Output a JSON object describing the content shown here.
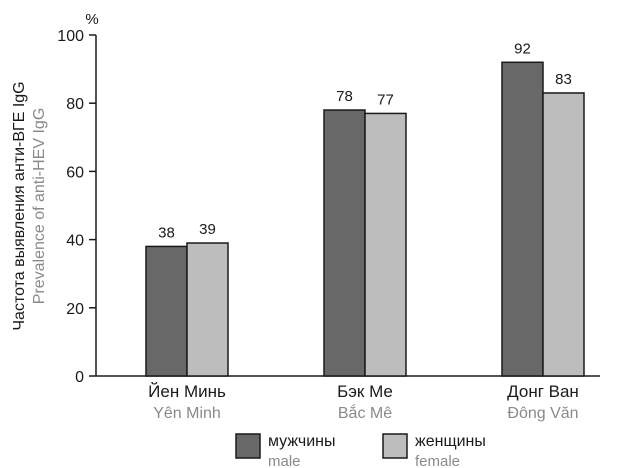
{
  "chart_data": {
    "type": "bar",
    "unit": "%",
    "ylabel": "Частота выявления анти-ВГЕ IgG",
    "ylabel_en": "Prevalence of anti-HEV IgG",
    "ylim": [
      0,
      100
    ],
    "yticks": [
      0,
      20,
      40,
      60,
      80,
      100
    ],
    "grid": false,
    "legend_position": "bottom",
    "categories": [
      {
        "label": "Йен Минь",
        "sublabel": "Yên Minh"
      },
      {
        "label": "Бэк Ме",
        "sublabel": "Bắc Mê"
      },
      {
        "label": "Донг Ван",
        "sublabel": "Đông Văn"
      }
    ],
    "series": [
      {
        "name": "мужчины",
        "name_en": "male",
        "color": "#686868",
        "values": [
          38,
          78,
          92
        ]
      },
      {
        "name": "женщины",
        "name_en": "female",
        "color": "#bdbdbd",
        "values": [
          39,
          77,
          83
        ]
      }
    ]
  }
}
